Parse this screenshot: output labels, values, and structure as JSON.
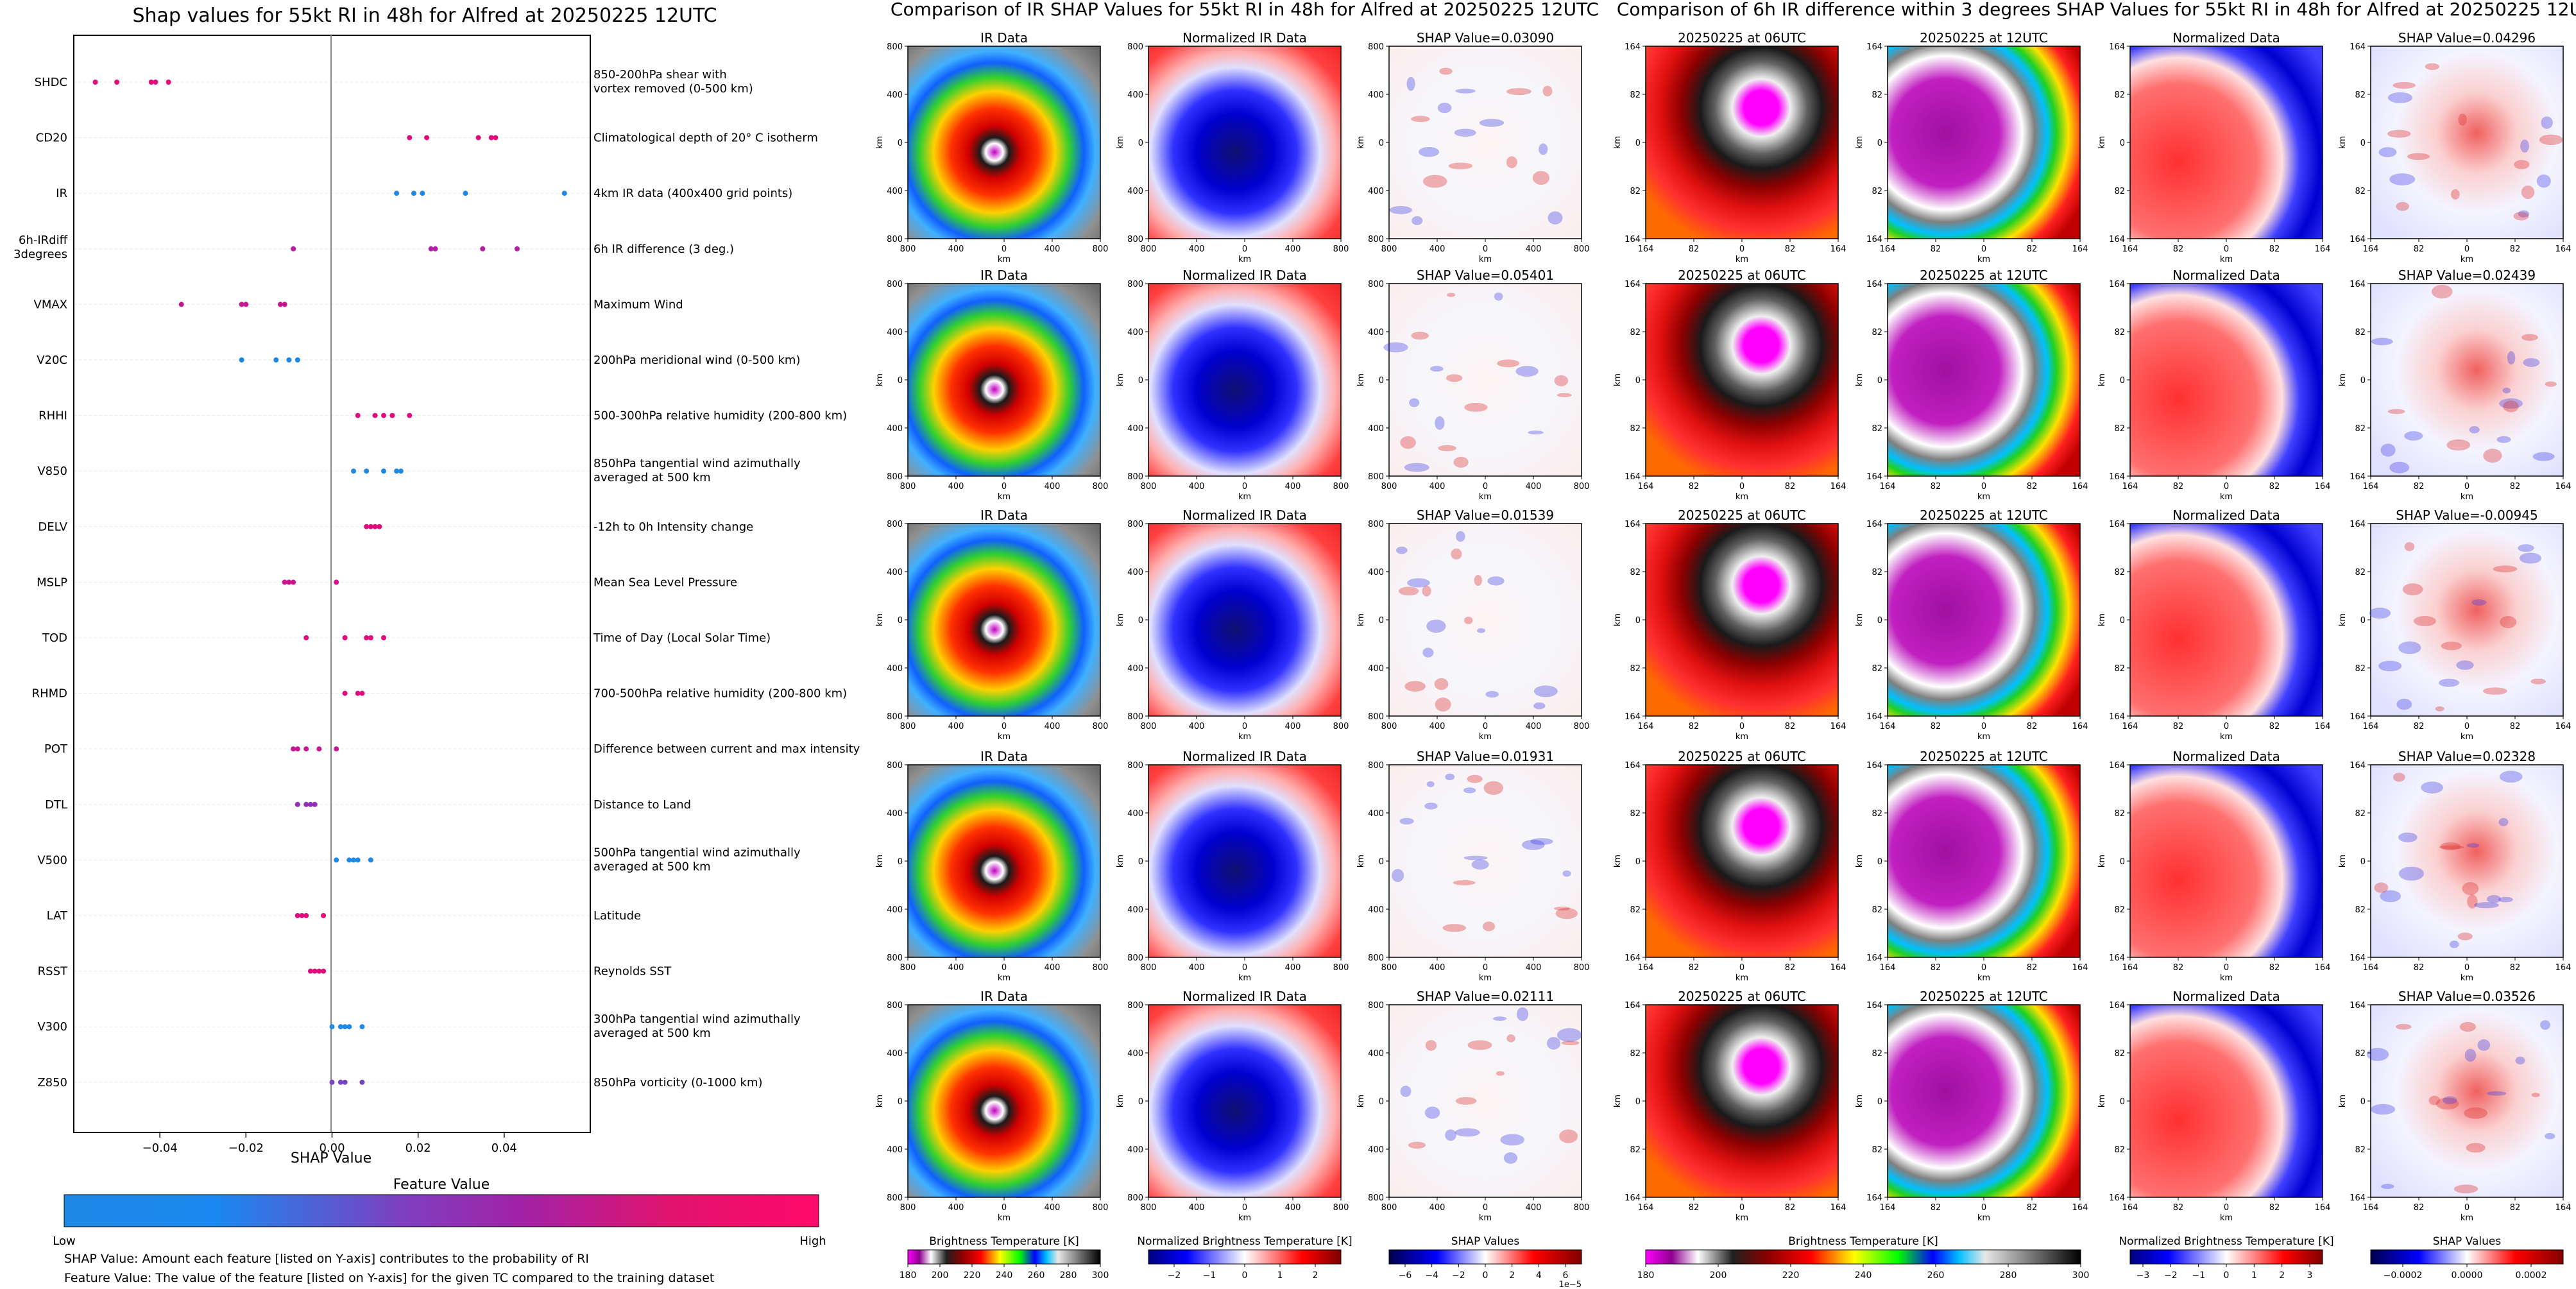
{
  "left_panel": {
    "title": "Shap values for 55kt RI in 48h for Alfred at 20250225 12UTC",
    "xlabel": "SHAP Value",
    "colorbar_title": "Feature Value",
    "colorbar_low": "Low",
    "colorbar_high": "High",
    "notes": [
      "SHAP Value: Amount each feature [listed on Y-axis] contributes to the probability of RI",
      "Feature Value: The value of the feature [listed on Y-axis] for the given TC compared to the training dataset"
    ]
  },
  "center_panel": {
    "title": "Comparison of IR SHAP Values for 55kt RI in 48h for Alfred at 20250225 12UTC",
    "col_titles": [
      "IR Data",
      "Normalized IR Data"
    ],
    "shap_titles": [
      "SHAP Value=0.03090",
      "SHAP Value=0.05401",
      "SHAP Value=0.01539",
      "SHAP Value=0.01931",
      "SHAP Value=0.02111"
    ],
    "axis_label": "km",
    "xticks": [
      "800",
      "400",
      "0",
      "400",
      "800"
    ],
    "yticks": [
      "800",
      "400",
      "0",
      "400",
      "800"
    ],
    "colorbars": [
      {
        "title": "Brightness Temperature [K]",
        "ticks": [
          "180",
          "200",
          "220",
          "240",
          "260",
          "280",
          "300"
        ]
      },
      {
        "title": "Normalized Brightness Temperature [K]",
        "ticks": [
          "−2",
          "−1",
          "0",
          "1",
          "2"
        ]
      },
      {
        "title": "SHAP Values",
        "ticks": [
          "−6",
          "−4",
          "−2",
          "0",
          "2",
          "4",
          "6"
        ],
        "scale": "1e−5"
      }
    ]
  },
  "right_panel": {
    "title": "Comparison of 6h IR difference within 3 degrees SHAP Values for 55kt RI in 48h for Alfred at 20250225 12UTC",
    "col_titles": [
      "20250225 at 06UTC",
      "20250225 at 12UTC",
      "Normalized Data"
    ],
    "shap_titles": [
      "SHAP Value=0.04296",
      "SHAP Value=0.02439",
      "SHAP Value=-0.00945",
      "SHAP Value=0.02328",
      "SHAP Value=0.03526"
    ],
    "axis_label": "km",
    "xticks": [
      "164",
      "82",
      "0",
      "82",
      "164"
    ],
    "yticks": [
      "164",
      "82",
      "0",
      "82",
      "164"
    ],
    "colorbars": [
      {
        "title": "Brightness Temperature [K]",
        "ticks": [
          "180",
          "200",
          "220",
          "240",
          "260",
          "280",
          "300"
        ]
      },
      {
        "title": "Normalized Brightness Temperature [K]",
        "ticks": [
          "−3",
          "−2",
          "−1",
          "0",
          "1",
          "2",
          "3"
        ]
      },
      {
        "title": "SHAP Values",
        "ticks": [
          "−0.0002",
          "0.0000",
          "0.0002"
        ]
      }
    ]
  },
  "chart_data": [
    {
      "type": "scatter",
      "title": "Shap values for 55kt RI in 48h for Alfred at 20250225 12UTC",
      "xlabel": "SHAP Value",
      "ylabel": "",
      "xlim": [
        -0.06,
        0.06
      ],
      "xticks": [
        "−0.04",
        "−0.02",
        "0.00",
        "0.02",
        "0.04"
      ],
      "xtick_values": [
        -0.04,
        -0.02,
        0.0,
        0.02,
        0.04
      ],
      "colors": {
        "low": "#1e88e5",
        "mid": "#9c27b0",
        "high": "#ff0066"
      },
      "features": [
        {
          "name": "SHDC",
          "desc": [
            "850-200hPa shear with",
            "vortex removed (0-500 km)"
          ],
          "points": [
            [
              -0.055,
              0.85
            ],
            [
              -0.05,
              0.85
            ],
            [
              -0.042,
              0.85
            ],
            [
              -0.041,
              0.85
            ],
            [
              -0.038,
              0.85
            ]
          ]
        },
        {
          "name": "CD20",
          "desc": [
            "Climatological depth of 20° C isotherm"
          ],
          "points": [
            [
              0.018,
              0.85
            ],
            [
              0.022,
              0.85
            ],
            [
              0.034,
              0.85
            ],
            [
              0.037,
              0.85
            ],
            [
              0.038,
              0.85
            ]
          ]
        },
        {
          "name": "IR",
          "desc": [
            "4km IR data (400x400 grid points)"
          ],
          "points": [
            [
              0.015,
              0.0
            ],
            [
              0.019,
              0.0
            ],
            [
              0.021,
              0.0
            ],
            [
              0.031,
              0.0
            ],
            [
              0.054,
              0.0
            ]
          ]
        },
        {
          "name": "6h-IRdiff\n3degrees",
          "desc": [
            "6h IR difference (3 deg.)"
          ],
          "points": [
            [
              -0.009,
              0.6
            ],
            [
              0.023,
              0.6
            ],
            [
              0.024,
              0.6
            ],
            [
              0.035,
              0.6
            ],
            [
              0.043,
              0.6
            ]
          ]
        },
        {
          "name": "VMAX",
          "desc": [
            "Maximum Wind"
          ],
          "points": [
            [
              -0.035,
              0.7
            ],
            [
              -0.021,
              0.7
            ],
            [
              -0.02,
              0.7
            ],
            [
              -0.012,
              0.7
            ],
            [
              -0.011,
              0.7
            ]
          ]
        },
        {
          "name": "V20C",
          "desc": [
            "200hPa meridional wind (0-500 km)"
          ],
          "points": [
            [
              -0.021,
              0.0
            ],
            [
              -0.013,
              0.0
            ],
            [
              -0.01,
              0.0
            ],
            [
              -0.008,
              0.0
            ]
          ]
        },
        {
          "name": "RHHI",
          "desc": [
            "500-300hPa relative humidity (200-800 km)"
          ],
          "points": [
            [
              0.006,
              0.85
            ],
            [
              0.01,
              0.85
            ],
            [
              0.012,
              0.85
            ],
            [
              0.014,
              0.85
            ],
            [
              0.018,
              0.85
            ]
          ]
        },
        {
          "name": "V850",
          "desc": [
            "850hPa tangential wind azimuthally",
            "averaged at 500 km"
          ],
          "points": [
            [
              0.005,
              0.0
            ],
            [
              0.008,
              0.0
            ],
            [
              0.012,
              0.0
            ],
            [
              0.015,
              0.0
            ],
            [
              0.016,
              0.0
            ]
          ]
        },
        {
          "name": "DELV",
          "desc": [
            "-12h to 0h Intensity change"
          ],
          "points": [
            [
              0.008,
              0.85
            ],
            [
              0.009,
              0.85
            ],
            [
              0.01,
              0.85
            ],
            [
              0.011,
              0.85
            ]
          ]
        },
        {
          "name": "MSLP",
          "desc": [
            "Mean Sea Level Pressure"
          ],
          "points": [
            [
              -0.011,
              0.75
            ],
            [
              -0.01,
              0.75
            ],
            [
              -0.009,
              0.75
            ],
            [
              0.001,
              0.75
            ]
          ]
        },
        {
          "name": "TOD",
          "desc": [
            "Time of Day (Local Solar Time)"
          ],
          "points": [
            [
              -0.006,
              0.85
            ],
            [
              0.003,
              0.85
            ],
            [
              0.008,
              0.85
            ],
            [
              0.009,
              0.85
            ],
            [
              0.012,
              0.85
            ]
          ]
        },
        {
          "name": "RHMD",
          "desc": [
            "700-500hPa relative humidity (200-800 km)"
          ],
          "points": [
            [
              0.003,
              0.85
            ],
            [
              0.006,
              0.85
            ],
            [
              0.007,
              0.85
            ]
          ]
        },
        {
          "name": "POT",
          "desc": [
            "Difference between current and max intensity"
          ],
          "points": [
            [
              -0.009,
              0.7
            ],
            [
              -0.008,
              0.7
            ],
            [
              -0.006,
              0.7
            ],
            [
              -0.003,
              0.7
            ],
            [
              0.001,
              0.7
            ]
          ]
        },
        {
          "name": "DTL",
          "desc": [
            "Distance to Land"
          ],
          "points": [
            [
              -0.008,
              0.45
            ],
            [
              -0.006,
              0.45
            ],
            [
              -0.005,
              0.45
            ],
            [
              -0.004,
              0.45
            ]
          ]
        },
        {
          "name": "V500",
          "desc": [
            "500hPa tangential wind azimuthally",
            "averaged at 500 km"
          ],
          "points": [
            [
              0.001,
              0.0
            ],
            [
              0.004,
              0.0
            ],
            [
              0.005,
              0.0
            ],
            [
              0.006,
              0.0
            ],
            [
              0.009,
              0.0
            ]
          ]
        },
        {
          "name": "LAT",
          "desc": [
            "Latitude"
          ],
          "points": [
            [
              -0.008,
              0.85
            ],
            [
              -0.007,
              0.85
            ],
            [
              -0.006,
              0.85
            ],
            [
              -0.002,
              0.85
            ]
          ]
        },
        {
          "name": "RSST",
          "desc": [
            "Reynolds SST"
          ],
          "points": [
            [
              -0.005,
              0.85
            ],
            [
              -0.004,
              0.85
            ],
            [
              -0.003,
              0.85
            ],
            [
              -0.002,
              0.85
            ]
          ]
        },
        {
          "name": "V300",
          "desc": [
            "300hPa tangential wind azimuthally",
            "averaged at 500 km"
          ],
          "points": [
            [
              0.0,
              0.0
            ],
            [
              0.002,
              0.0
            ],
            [
              0.003,
              0.0
            ],
            [
              0.004,
              0.0
            ],
            [
              0.007,
              0.0
            ]
          ]
        },
        {
          "name": "Z850",
          "desc": [
            "850hPa vorticity (0-1000 km)"
          ],
          "points": [
            [
              0.0,
              0.35
            ],
            [
              0.002,
              0.35
            ],
            [
              0.003,
              0.35
            ],
            [
              0.007,
              0.35
            ]
          ]
        }
      ]
    },
    {
      "type": "heatmap",
      "title": "Comparison of IR SHAP Values for 55kt RI in 48h for Alfred at 20250225 12UTC",
      "panels": [
        "IR Data",
        "Normalized IR Data",
        "SHAP"
      ],
      "shap_values": [
        0.0309,
        0.05401,
        0.01539,
        0.01931,
        0.02111
      ],
      "xlim": [
        -800,
        800
      ],
      "ylim": [
        -800,
        800
      ],
      "colorbar_ranges": [
        [
          180,
          310
        ],
        [
          -2.8,
          2.8
        ],
        [
          -6.5e-05,
          6.5e-05
        ]
      ]
    },
    {
      "type": "heatmap",
      "title": "Comparison of 6h IR difference within 3 degrees SHAP Values for 55kt RI in 48h for Alfred at 20250225 12UTC",
      "panels": [
        "20250225 at 06UTC",
        "20250225 at 12UTC",
        "Normalized Data",
        "SHAP"
      ],
      "shap_values": [
        0.04296,
        0.02439,
        -0.00945,
        0.02328,
        0.03526
      ],
      "xlim": [
        -164,
        164
      ],
      "ylim": [
        -164,
        164
      ],
      "colorbar_ranges": [
        [
          180,
          310
        ],
        [
          -3.5,
          3.5
        ],
        [
          -0.00035,
          0.00035
        ]
      ]
    }
  ]
}
